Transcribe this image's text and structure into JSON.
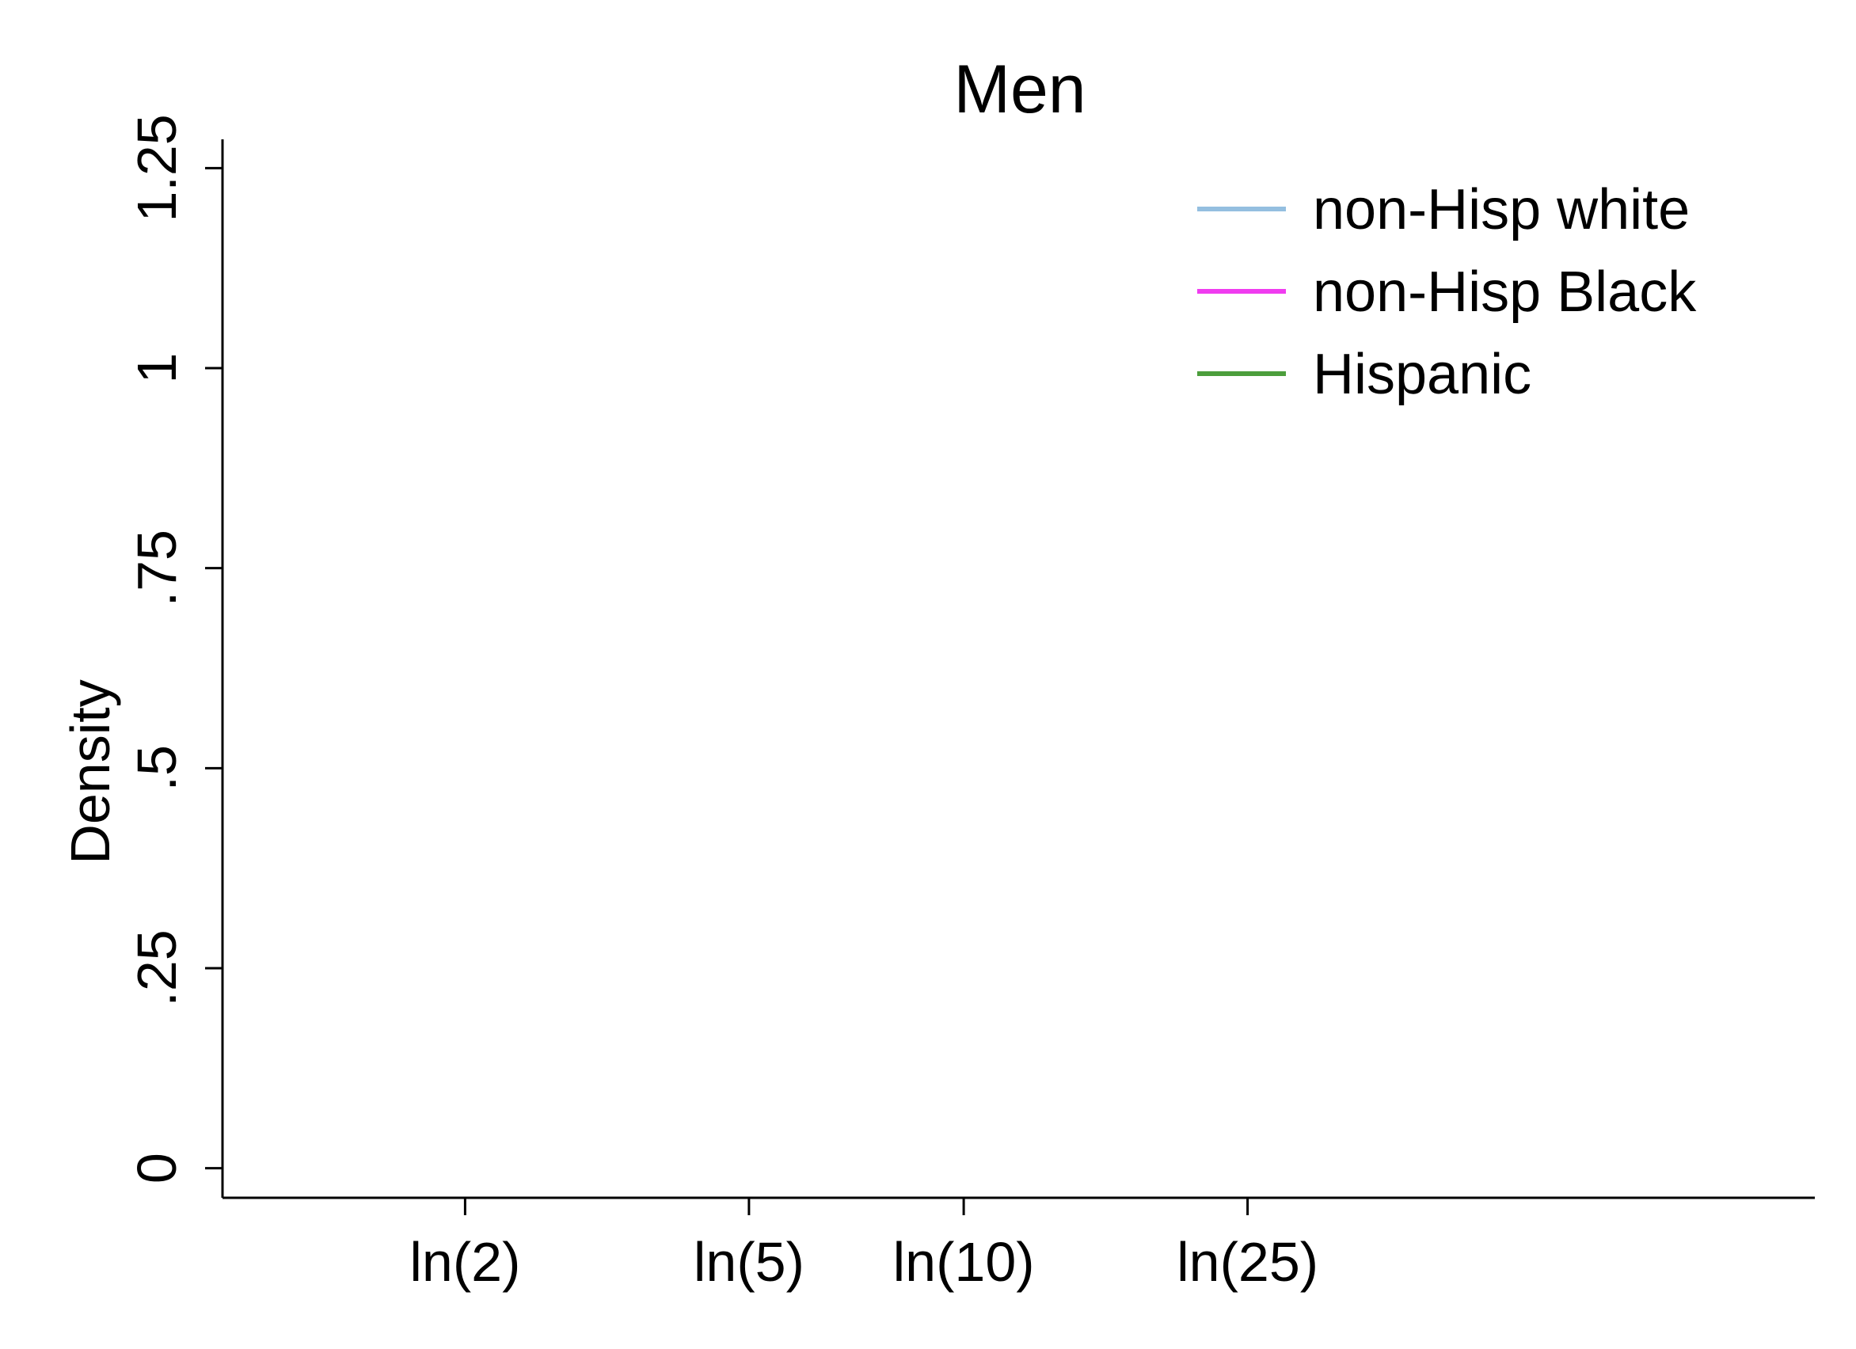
{
  "chart_data": {
    "type": "line",
    "title": "Men",
    "xlabel": "",
    "ylabel": "Density",
    "x_ticks": [
      {
        "value": 0.6931,
        "label": "ln(2)"
      },
      {
        "value": 1.6094,
        "label": "ln(5)"
      },
      {
        "value": 2.3026,
        "label": "ln(10)"
      },
      {
        "value": 3.2189,
        "label": "ln(25)"
      }
    ],
    "y_ticks": [
      {
        "value": 0,
        "label": "0"
      },
      {
        "value": 0.25,
        "label": ".25"
      },
      {
        "value": 0.5,
        "label": ".5"
      },
      {
        "value": 0.75,
        "label": ".75"
      },
      {
        "value": 1,
        "label": "1"
      },
      {
        "value": 1.25,
        "label": "1.25"
      }
    ],
    "xlim": [
      -0.09,
      5.05
    ],
    "ylim": [
      -0.037,
      1.286
    ],
    "grid": false,
    "legend_position": "top-right",
    "series": [
      {
        "name": "non-Hisp white",
        "color": "#94bfe0",
        "x": [],
        "y": []
      },
      {
        "name": "non-Hisp Black",
        "color": "#f03cf0",
        "x": [],
        "y": []
      },
      {
        "name": "Hispanic",
        "color": "#4c9e3c",
        "x": [],
        "y": []
      }
    ]
  }
}
